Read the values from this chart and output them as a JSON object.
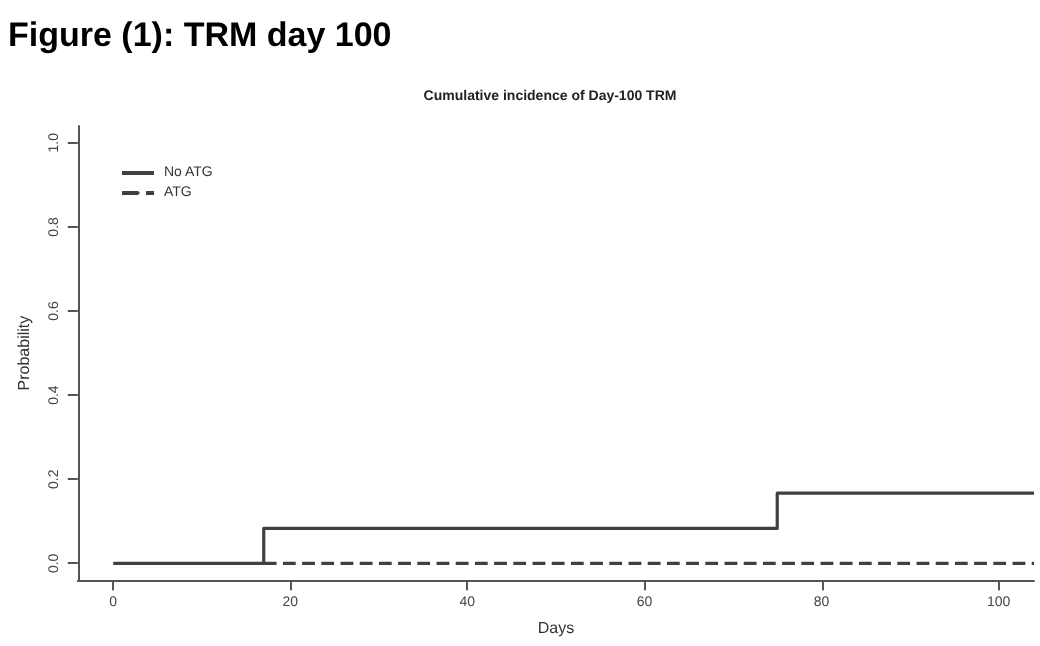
{
  "chart_data": {
    "type": "step",
    "title": "Figure (1): TRM day 100",
    "subtitle": "Cumulative incidence of Day-100 TRM",
    "xlabel": "Days",
    "ylabel": "Probability",
    "series": [
      {
        "name": "No ATG",
        "color": "#404040",
        "line_style": "solid",
        "x": [
          0,
          17,
          75,
          104
        ],
        "values": [
          0,
          0.083,
          0.167,
          0.167
        ]
      },
      {
        "name": "ATG",
        "color": "#404040",
        "line_style": "dashed",
        "x": [
          17,
          104
        ],
        "values": [
          0,
          0
        ]
      }
    ],
    "xlim": [
      -4,
      104
    ],
    "xticks": [
      0,
      20,
      40,
      60,
      80,
      100
    ],
    "ylim": [
      -0.04,
      1.04
    ],
    "yticks": [
      {
        "value": 0,
        "label": "0.0"
      },
      {
        "value": 0.2,
        "label": "0.2"
      },
      {
        "value": 0.4,
        "label": "0.4"
      },
      {
        "value": 0.6,
        "label": "0.6"
      },
      {
        "value": 0.8,
        "label": "0.8"
      },
      {
        "value": 1,
        "label": "1.0"
      }
    ],
    "grid": false,
    "legend": "top left",
    "marker": "none"
  }
}
